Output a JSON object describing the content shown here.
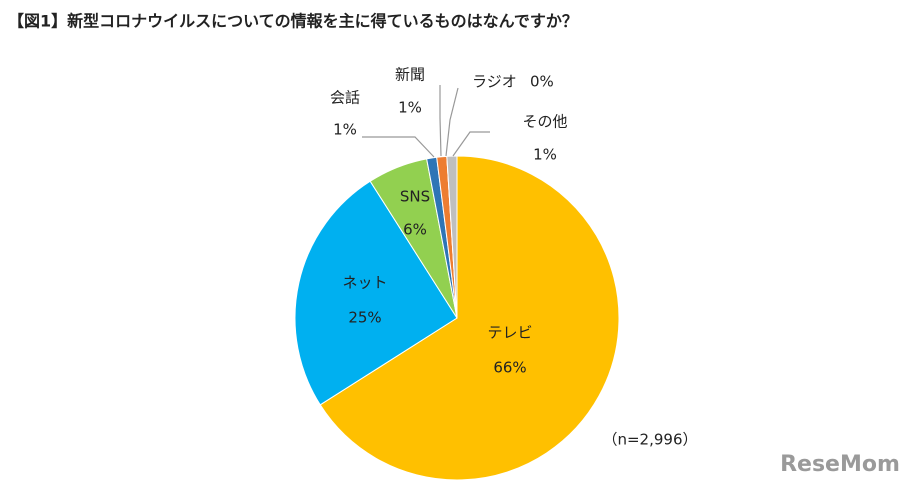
{
  "chart_data": {
    "type": "pie",
    "title": "【図1】新型コロナウイルスについての情報を主に得ているものはなんですか？",
    "categories": [
      "テレビ",
      "ネット",
      "SNS",
      "会話",
      "新聞",
      "ラジオ",
      "その他"
    ],
    "values": [
      66,
      25,
      6,
      1,
      1,
      0,
      1
    ],
    "value_labels": [
      "66%",
      "25%",
      "6%",
      "1%",
      "1%",
      "0%",
      "1%"
    ],
    "colors": [
      "#FFC000",
      "#00B0F0",
      "#92D050",
      "#2E75B6",
      "#ED7D31",
      "#A5A5A5",
      "#BFBFBF"
    ],
    "note": "（n=2,996）"
  },
  "watermark": "ReseMom"
}
